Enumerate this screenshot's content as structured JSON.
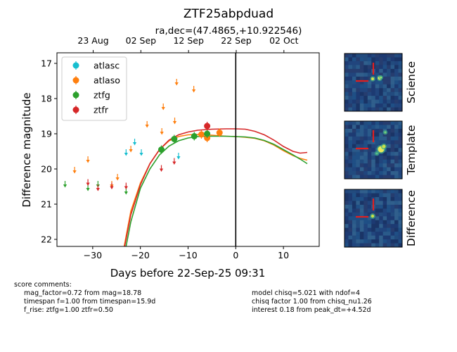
{
  "chart_data": {
    "type": "scatter",
    "title": "ZTF25abpduad",
    "subtitle": "ra,dec=(47.4865,+10.922546)",
    "xlabel": "Days before 22-Sep-25 09:31",
    "ylabel": "Difference magnitude",
    "xlim": [
      -37.5,
      17.5
    ],
    "ylim": [
      22.2,
      16.7
    ],
    "y_inverted": true,
    "x_ticks": [
      -30,
      -20,
      -10,
      0,
      10
    ],
    "y_ticks": [
      17,
      18,
      19,
      20,
      21,
      22
    ],
    "top_axis_ticks": [
      {
        "label": "23 Aug",
        "x": -29.9
      },
      {
        "label": "02 Sep",
        "x": -19.9
      },
      {
        "label": "12 Sep",
        "x": -9.9
      },
      {
        "label": "22 Sep",
        "x": 0.1
      },
      {
        "label": "02 Oct",
        "x": 10.1
      }
    ],
    "reference_line_x": 0,
    "legend_position": "upper-left",
    "grid": false,
    "series": [
      {
        "name": "atlasc",
        "color": "#17becf",
        "detections": [],
        "upper_limits": [
          {
            "x": -23.0,
            "y": 19.5
          },
          {
            "x": -21.2,
            "y": 19.2
          },
          {
            "x": -19.8,
            "y": 19.5
          },
          {
            "x": -12.0,
            "y": 19.6
          }
        ]
      },
      {
        "name": "atlaso",
        "color": "#ff7f0e",
        "detections": [
          {
            "x": -7.2,
            "y": 19.02
          },
          {
            "x": -6.0,
            "y": 19.12
          },
          {
            "x": -3.4,
            "y": 18.97
          }
        ],
        "upper_limits": [
          {
            "x": -33.8,
            "y": 20.0
          },
          {
            "x": -31.0,
            "y": 19.7
          },
          {
            "x": -26.0,
            "y": 20.4
          },
          {
            "x": -24.8,
            "y": 20.2
          },
          {
            "x": -22.0,
            "y": 19.4
          },
          {
            "x": -18.6,
            "y": 18.7
          },
          {
            "x": -15.5,
            "y": 18.9
          },
          {
            "x": -15.2,
            "y": 18.2
          },
          {
            "x": -12.8,
            "y": 18.6
          },
          {
            "x": -12.4,
            "y": 17.5
          },
          {
            "x": -8.8,
            "y": 17.7
          }
        ]
      },
      {
        "name": "ztfg",
        "color": "#2ca02c",
        "detections": [
          {
            "x": -15.6,
            "y": 19.45
          },
          {
            "x": -12.9,
            "y": 19.15
          },
          {
            "x": -8.7,
            "y": 19.07
          },
          {
            "x": -6.0,
            "y": 19.0
          }
        ],
        "upper_limits": [
          {
            "x": -35.8,
            "y": 20.4
          },
          {
            "x": -31.0,
            "y": 20.5
          },
          {
            "x": -28.9,
            "y": 20.4
          },
          {
            "x": -23.0,
            "y": 20.6
          }
        ]
      },
      {
        "name": "ztfr",
        "color": "#d62728",
        "detections": [
          {
            "x": -6.0,
            "y": 18.78
          }
        ],
        "upper_limits": [
          {
            "x": -31.0,
            "y": 20.35
          },
          {
            "x": -28.9,
            "y": 20.5
          },
          {
            "x": -26.0,
            "y": 20.45
          },
          {
            "x": -23.0,
            "y": 20.45
          },
          {
            "x": -15.6,
            "y": 19.95
          },
          {
            "x": -12.9,
            "y": 19.75
          }
        ]
      }
    ],
    "model_curves": [
      {
        "color": "#ff7f0e",
        "points": [
          [
            -23.4,
            22.2
          ],
          [
            -22,
            21.2
          ],
          [
            -20,
            20.4
          ],
          [
            -18,
            19.85
          ],
          [
            -16,
            19.45
          ],
          [
            -14,
            19.2
          ],
          [
            -12,
            19.08
          ],
          [
            -10,
            19.03
          ],
          [
            -8,
            19.02
          ],
          [
            -5,
            19.04
          ],
          [
            -2,
            19.07
          ],
          [
            0,
            19.08
          ],
          [
            2,
            19.1
          ],
          [
            4,
            19.13
          ],
          [
            6,
            19.2
          ],
          [
            8,
            19.32
          ],
          [
            10,
            19.48
          ],
          [
            12,
            19.62
          ],
          [
            13.5,
            19.7
          ],
          [
            15,
            19.75
          ]
        ]
      },
      {
        "color": "#2ca02c",
        "points": [
          [
            -23.0,
            22.2
          ],
          [
            -22,
            21.5
          ],
          [
            -20,
            20.55
          ],
          [
            -18,
            20.0
          ],
          [
            -16,
            19.6
          ],
          [
            -14,
            19.35
          ],
          [
            -12,
            19.2
          ],
          [
            -10,
            19.12
          ],
          [
            -8,
            19.08
          ],
          [
            -5,
            19.07
          ],
          [
            -2,
            19.07
          ],
          [
            0,
            19.08
          ],
          [
            2,
            19.09
          ],
          [
            4,
            19.12
          ],
          [
            6,
            19.19
          ],
          [
            8,
            19.3
          ],
          [
            10,
            19.45
          ],
          [
            12,
            19.6
          ],
          [
            13.5,
            19.72
          ],
          [
            15,
            19.85
          ]
        ]
      },
      {
        "color": "#d62728",
        "points": [
          [
            -23.3,
            22.2
          ],
          [
            -22,
            21.3
          ],
          [
            -20,
            20.45
          ],
          [
            -18,
            19.85
          ],
          [
            -16,
            19.45
          ],
          [
            -14,
            19.18
          ],
          [
            -12,
            19.03
          ],
          [
            -10,
            18.95
          ],
          [
            -8,
            18.9
          ],
          [
            -5,
            18.87
          ],
          [
            -2,
            18.86
          ],
          [
            0,
            18.86
          ],
          [
            2,
            18.87
          ],
          [
            4,
            18.93
          ],
          [
            6,
            19.03
          ],
          [
            8,
            19.18
          ],
          [
            10,
            19.36
          ],
          [
            12,
            19.5
          ],
          [
            13.5,
            19.55
          ],
          [
            15,
            19.53
          ]
        ]
      }
    ]
  },
  "cutouts": [
    {
      "label": "Science"
    },
    {
      "label": "Template"
    },
    {
      "label": "Difference"
    }
  ],
  "comments": {
    "left_header": "score comments:",
    "left_lines": [
      "mag_factor=0.72 from mag=18.78",
      "timespan f=1.00 from timespan=15.9d",
      "f_rise: ztfg=1.00 ztfr=0.50"
    ],
    "right_lines": [
      "model chisq=5.021 with ndof=4",
      "chisq factor 1.00 from chisq_nu1.26",
      "interest 0.18 from peak_dt=+4.52d"
    ]
  }
}
